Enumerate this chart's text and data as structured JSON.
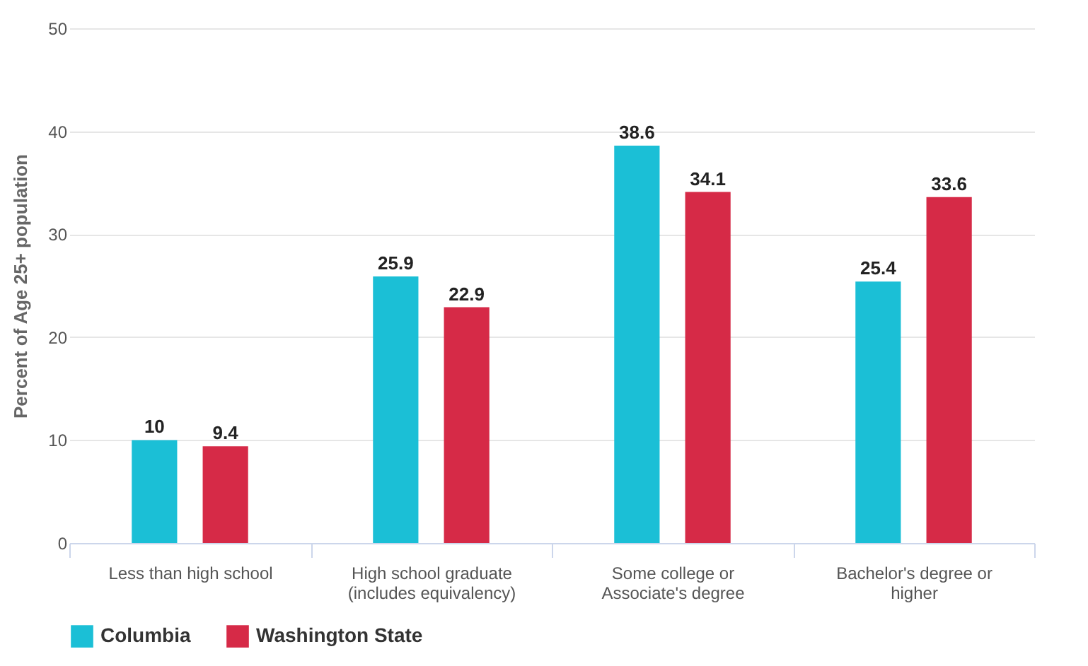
{
  "chart_data": {
    "type": "bar",
    "ylabel": "Percent of Age 25+ population",
    "categories": [
      "Less than high school",
      "High school graduate (includes equivalency)",
      "Some college or Associate's degree",
      "Bachelor's degree or higher"
    ],
    "series": [
      {
        "name": "Columbia",
        "color": "#1bbfd6",
        "values": [
          10,
          25.9,
          38.6,
          25.4
        ]
      },
      {
        "name": "Washington State",
        "color": "#d62a47",
        "values": [
          9.4,
          22.9,
          34.1,
          33.6
        ]
      }
    ],
    "ylim": [
      0,
      50
    ],
    "yticks": [
      0,
      10,
      20,
      30,
      40,
      50
    ],
    "grid": "y",
    "legend": "bottom",
    "data_labels": true
  }
}
